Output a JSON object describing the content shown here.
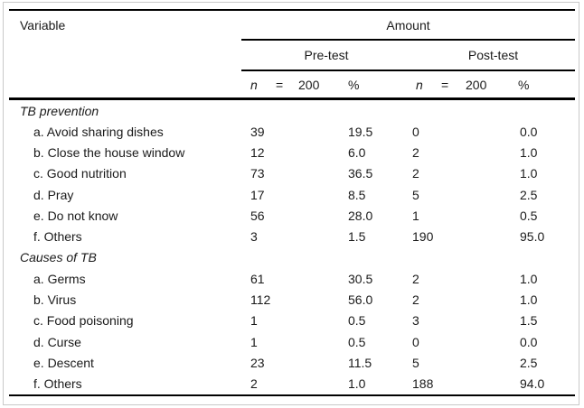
{
  "table": {
    "header": {
      "variable_label": "Variable",
      "amount_label": "Amount",
      "pretest_label": "Pre-test",
      "posttest_label": "Post-test",
      "pre_stat": {
        "n": "n",
        "eq": "=",
        "total": "200",
        "pct": "%"
      },
      "post_stat": {
        "n": "n",
        "eq": "=",
        "total": "200",
        "pct": "%"
      }
    },
    "sections": [
      {
        "title": "TB prevention",
        "rows": [
          {
            "label": "a. Avoid sharing dishes",
            "pre_n": "39",
            "pre_pct": "19.5",
            "post_n": "0",
            "post_pct": "0.0"
          },
          {
            "label": "b. Close the house window",
            "pre_n": "12",
            "pre_pct": "6.0",
            "post_n": "2",
            "post_pct": "1.0"
          },
          {
            "label": "c. Good nutrition",
            "pre_n": "73",
            "pre_pct": "36.5",
            "post_n": "2",
            "post_pct": "1.0"
          },
          {
            "label": "d. Pray",
            "pre_n": "17",
            "pre_pct": "8.5",
            "post_n": "5",
            "post_pct": "2.5"
          },
          {
            "label": "e. Do not know",
            "pre_n": "56",
            "pre_pct": "28.0",
            "post_n": "1",
            "post_pct": "0.5"
          },
          {
            "label": "f. Others",
            "pre_n": "3",
            "pre_pct": "1.5",
            "post_n": "190",
            "post_pct": "95.0"
          }
        ]
      },
      {
        "title": "Causes of TB",
        "rows": [
          {
            "label": "a. Germs",
            "pre_n": "61",
            "pre_pct": "30.5",
            "post_n": "2",
            "post_pct": "1.0"
          },
          {
            "label": "b. Virus",
            "pre_n": "112",
            "pre_pct": "56.0",
            "post_n": "2",
            "post_pct": "1.0"
          },
          {
            "label": "c. Food poisoning",
            "pre_n": "1",
            "pre_pct": "0.5",
            "post_n": "3",
            "post_pct": "1.5"
          },
          {
            "label": "d. Curse",
            "pre_n": "1",
            "pre_pct": "0.5",
            "post_n": "0",
            "post_pct": "0.0"
          },
          {
            "label": "e. Descent",
            "pre_n": "23",
            "pre_pct": "11.5",
            "post_n": "5",
            "post_pct": "2.5"
          },
          {
            "label": "f. Others",
            "pre_n": "2",
            "pre_pct": "1.0",
            "post_n": "188",
            "post_pct": "94.0"
          }
        ]
      }
    ]
  },
  "colors": {
    "rule": "#000000",
    "frame": "#c9c9c9",
    "text": "#1a1a1a",
    "background": "#ffffff"
  }
}
